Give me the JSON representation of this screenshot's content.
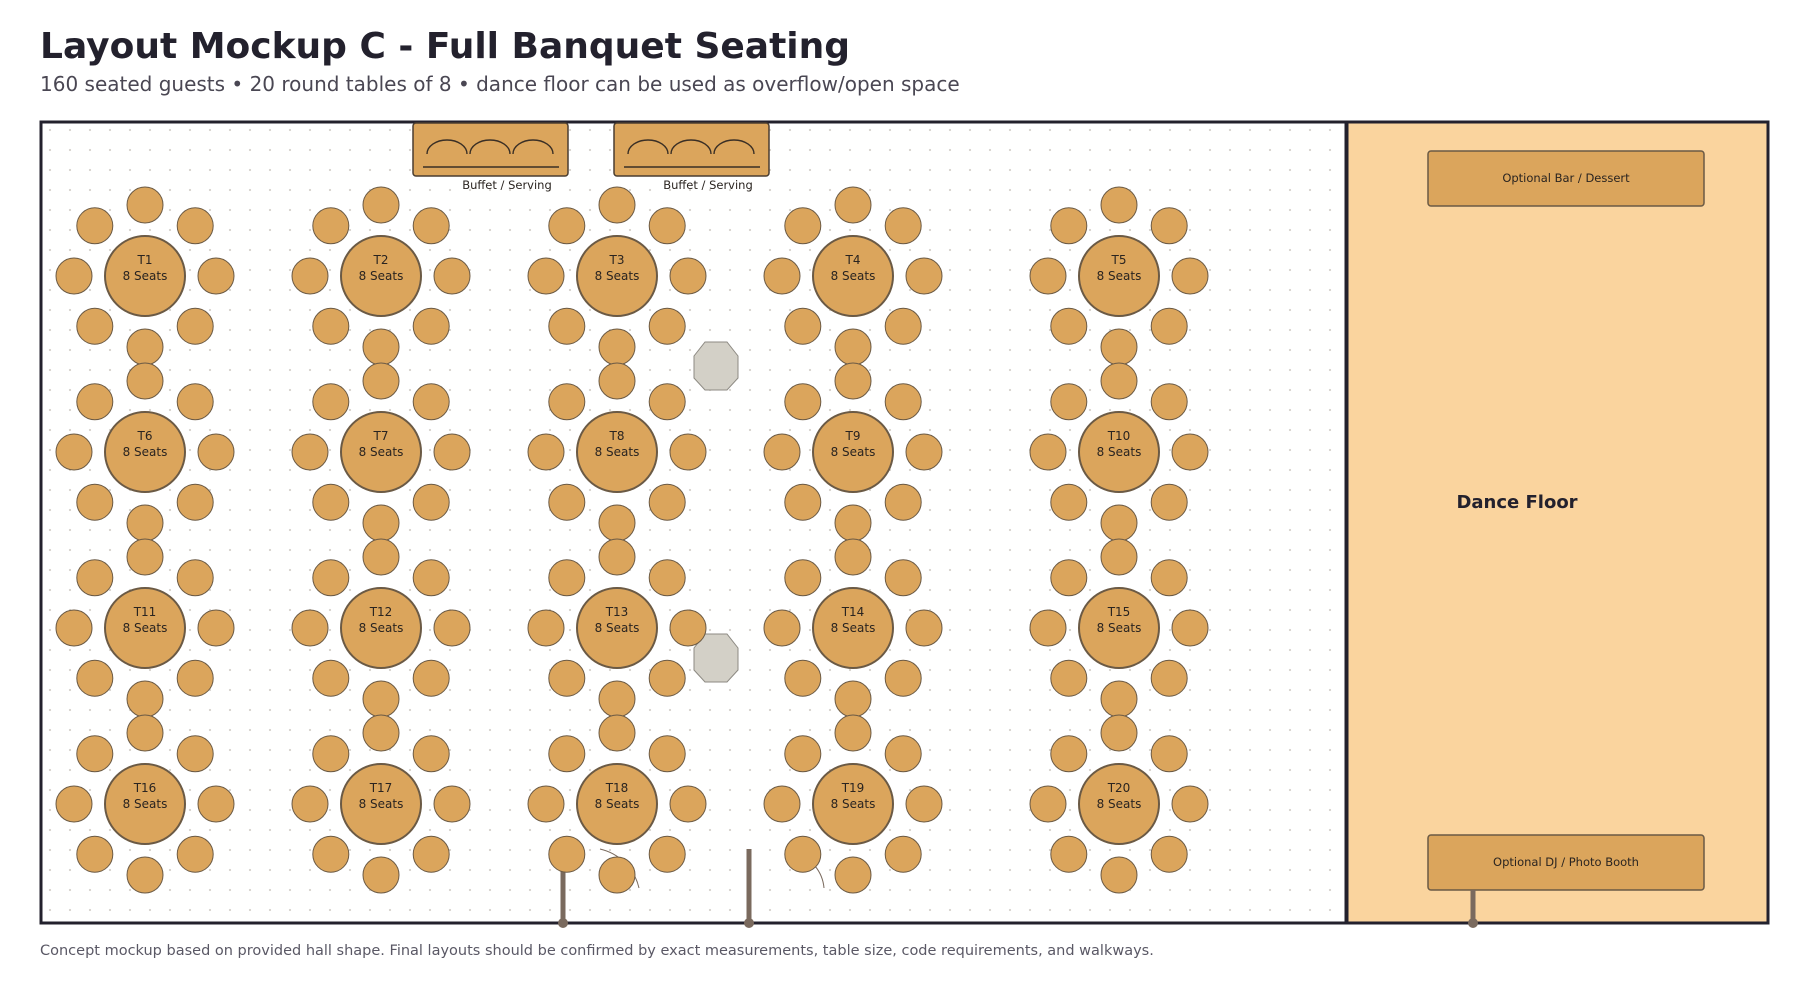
{
  "header": {
    "title": "Layout Mockup C - Full Banquet Seating",
    "subtitle": "160 seated guests • 20 round tables of 8 • dance floor can be used as overflow/open space"
  },
  "footer": {
    "note": "Concept mockup based on provided hall shape. Final layouts should be confirmed by exact measurements, table size, code requirements, and walkways."
  },
  "colors": {
    "table": "#dba55c",
    "table_outline": "#6b5a45",
    "dance_floor": "#fad49e",
    "wall": "#23212d",
    "pillar": "#d3d0c7",
    "door": "#7a6a5e",
    "grid_dot": "#d6d2cc"
  },
  "buffets": [
    {
      "label": "Buffet / Serving",
      "icon": "chafing-dish-icon"
    },
    {
      "label": "Buffet / Serving",
      "icon": "chafing-dish-icon"
    }
  ],
  "tables": [
    {
      "name": "T1",
      "seats_label": "8 Seats",
      "seats": 8
    },
    {
      "name": "T2",
      "seats_label": "8 Seats",
      "seats": 8
    },
    {
      "name": "T3",
      "seats_label": "8 Seats",
      "seats": 8
    },
    {
      "name": "T4",
      "seats_label": "8 Seats",
      "seats": 8
    },
    {
      "name": "T5",
      "seats_label": "8 Seats",
      "seats": 8
    },
    {
      "name": "T6",
      "seats_label": "8 Seats",
      "seats": 8
    },
    {
      "name": "T7",
      "seats_label": "8 Seats",
      "seats": 8
    },
    {
      "name": "T8",
      "seats_label": "8 Seats",
      "seats": 8
    },
    {
      "name": "T9",
      "seats_label": "8 Seats",
      "seats": 8
    },
    {
      "name": "T10",
      "seats_label": "8 Seats",
      "seats": 8
    },
    {
      "name": "T11",
      "seats_label": "8 Seats",
      "seats": 8
    },
    {
      "name": "T12",
      "seats_label": "8 Seats",
      "seats": 8
    },
    {
      "name": "T13",
      "seats_label": "8 Seats",
      "seats": 8
    },
    {
      "name": "T14",
      "seats_label": "8 Seats",
      "seats": 8
    },
    {
      "name": "T15",
      "seats_label": "8 Seats",
      "seats": 8
    },
    {
      "name": "T16",
      "seats_label": "8 Seats",
      "seats": 8
    },
    {
      "name": "T17",
      "seats_label": "8 Seats",
      "seats": 8
    },
    {
      "name": "T18",
      "seats_label": "8 Seats",
      "seats": 8
    },
    {
      "name": "T19",
      "seats_label": "8 Seats",
      "seats": 8
    },
    {
      "name": "T20",
      "seats_label": "8 Seats",
      "seats": 8
    }
  ],
  "dance_floor": {
    "label": "Dance Floor",
    "bar_label": "Optional Bar / Dessert",
    "dj_label": "Optional DJ / Photo Booth"
  }
}
